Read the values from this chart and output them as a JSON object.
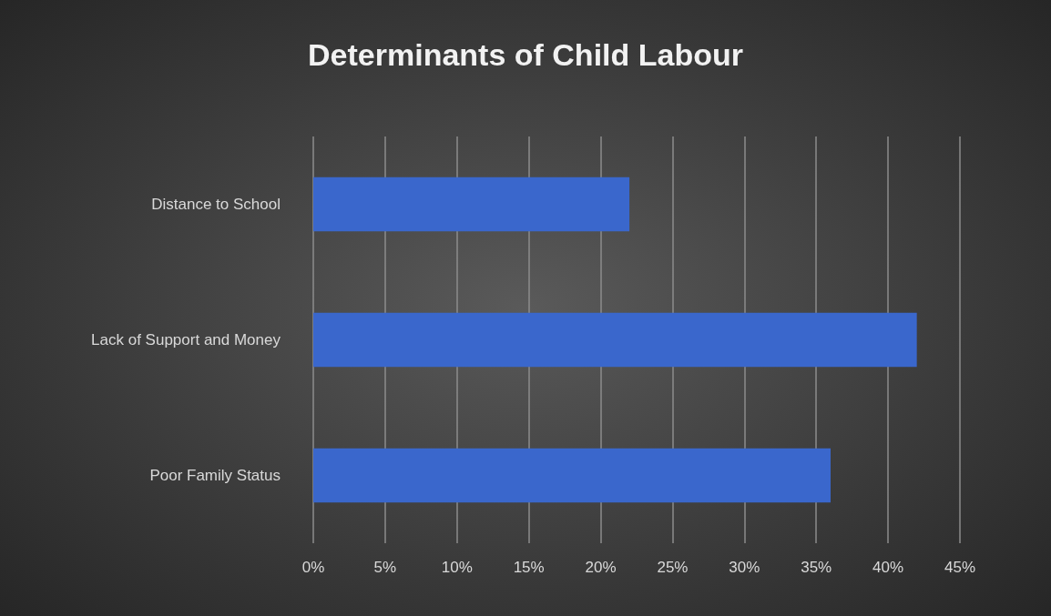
{
  "chart_data": {
    "type": "bar",
    "orientation": "horizontal",
    "title": "Determinants of Child Labour",
    "categories": [
      "Distance to School",
      "Lack of Support and Money",
      "Poor Family Status"
    ],
    "values": [
      22,
      42,
      36
    ],
    "color": "#3a67cc",
    "xlim": [
      0,
      45
    ],
    "xticks": [
      {
        "value": 0,
        "label": "0%"
      },
      {
        "value": 5,
        "label": "5%"
      },
      {
        "value": 10,
        "label": "10%"
      },
      {
        "value": 15,
        "label": "15%"
      },
      {
        "value": 20,
        "label": "20%"
      },
      {
        "value": 25,
        "label": "25%"
      },
      {
        "value": 30,
        "label": "30%"
      },
      {
        "value": 35,
        "label": "35%"
      },
      {
        "value": 40,
        "label": "40%"
      },
      {
        "value": 45,
        "label": "45%"
      }
    ],
    "grid": "x"
  }
}
